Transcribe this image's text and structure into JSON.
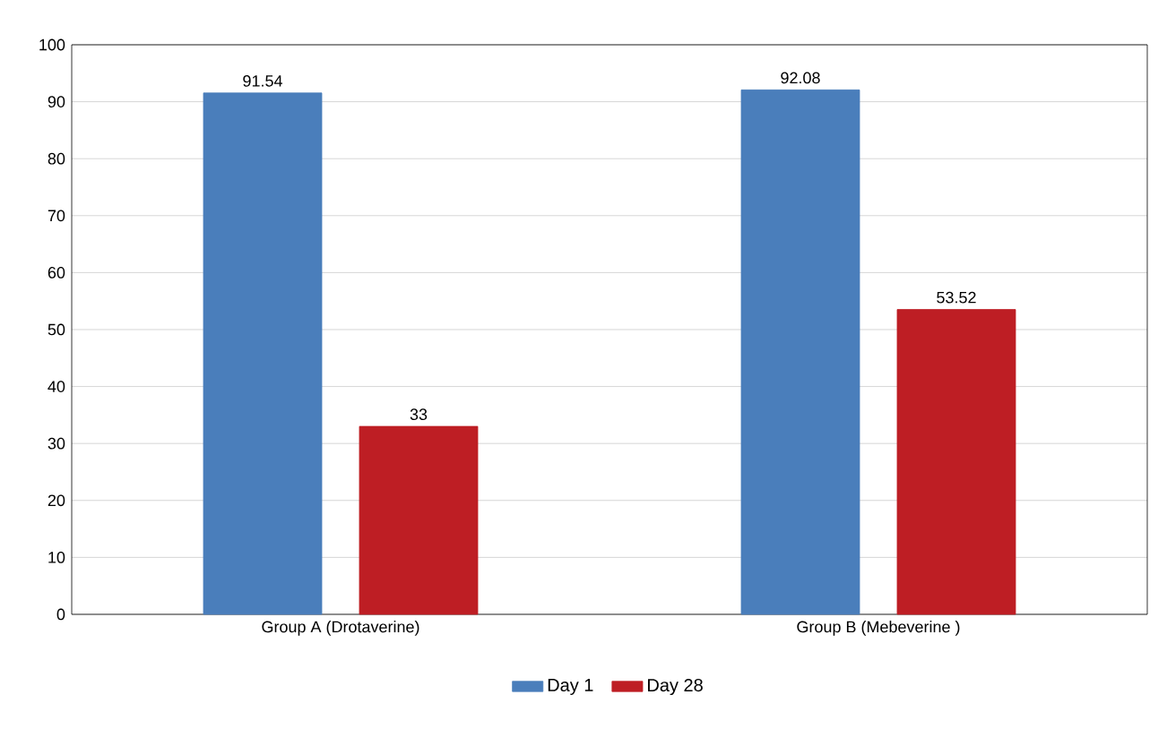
{
  "chart_data": {
    "type": "bar",
    "categories": [
      "Group A (Drotaverine)",
      "Group B (Mebeverine )"
    ],
    "series": [
      {
        "name": "Day 1",
        "color": "#4a7ebb",
        "values": [
          91.54,
          92.08
        ]
      },
      {
        "name": "Day 28",
        "color": "#be1e24",
        "values": [
          33,
          53.52
        ]
      }
    ],
    "ylim": [
      0,
      100
    ],
    "yticks": [
      0,
      10,
      20,
      30,
      40,
      50,
      60,
      70,
      80,
      90,
      100
    ],
    "grid": "y",
    "legend": "bottom",
    "data_labels": true
  }
}
